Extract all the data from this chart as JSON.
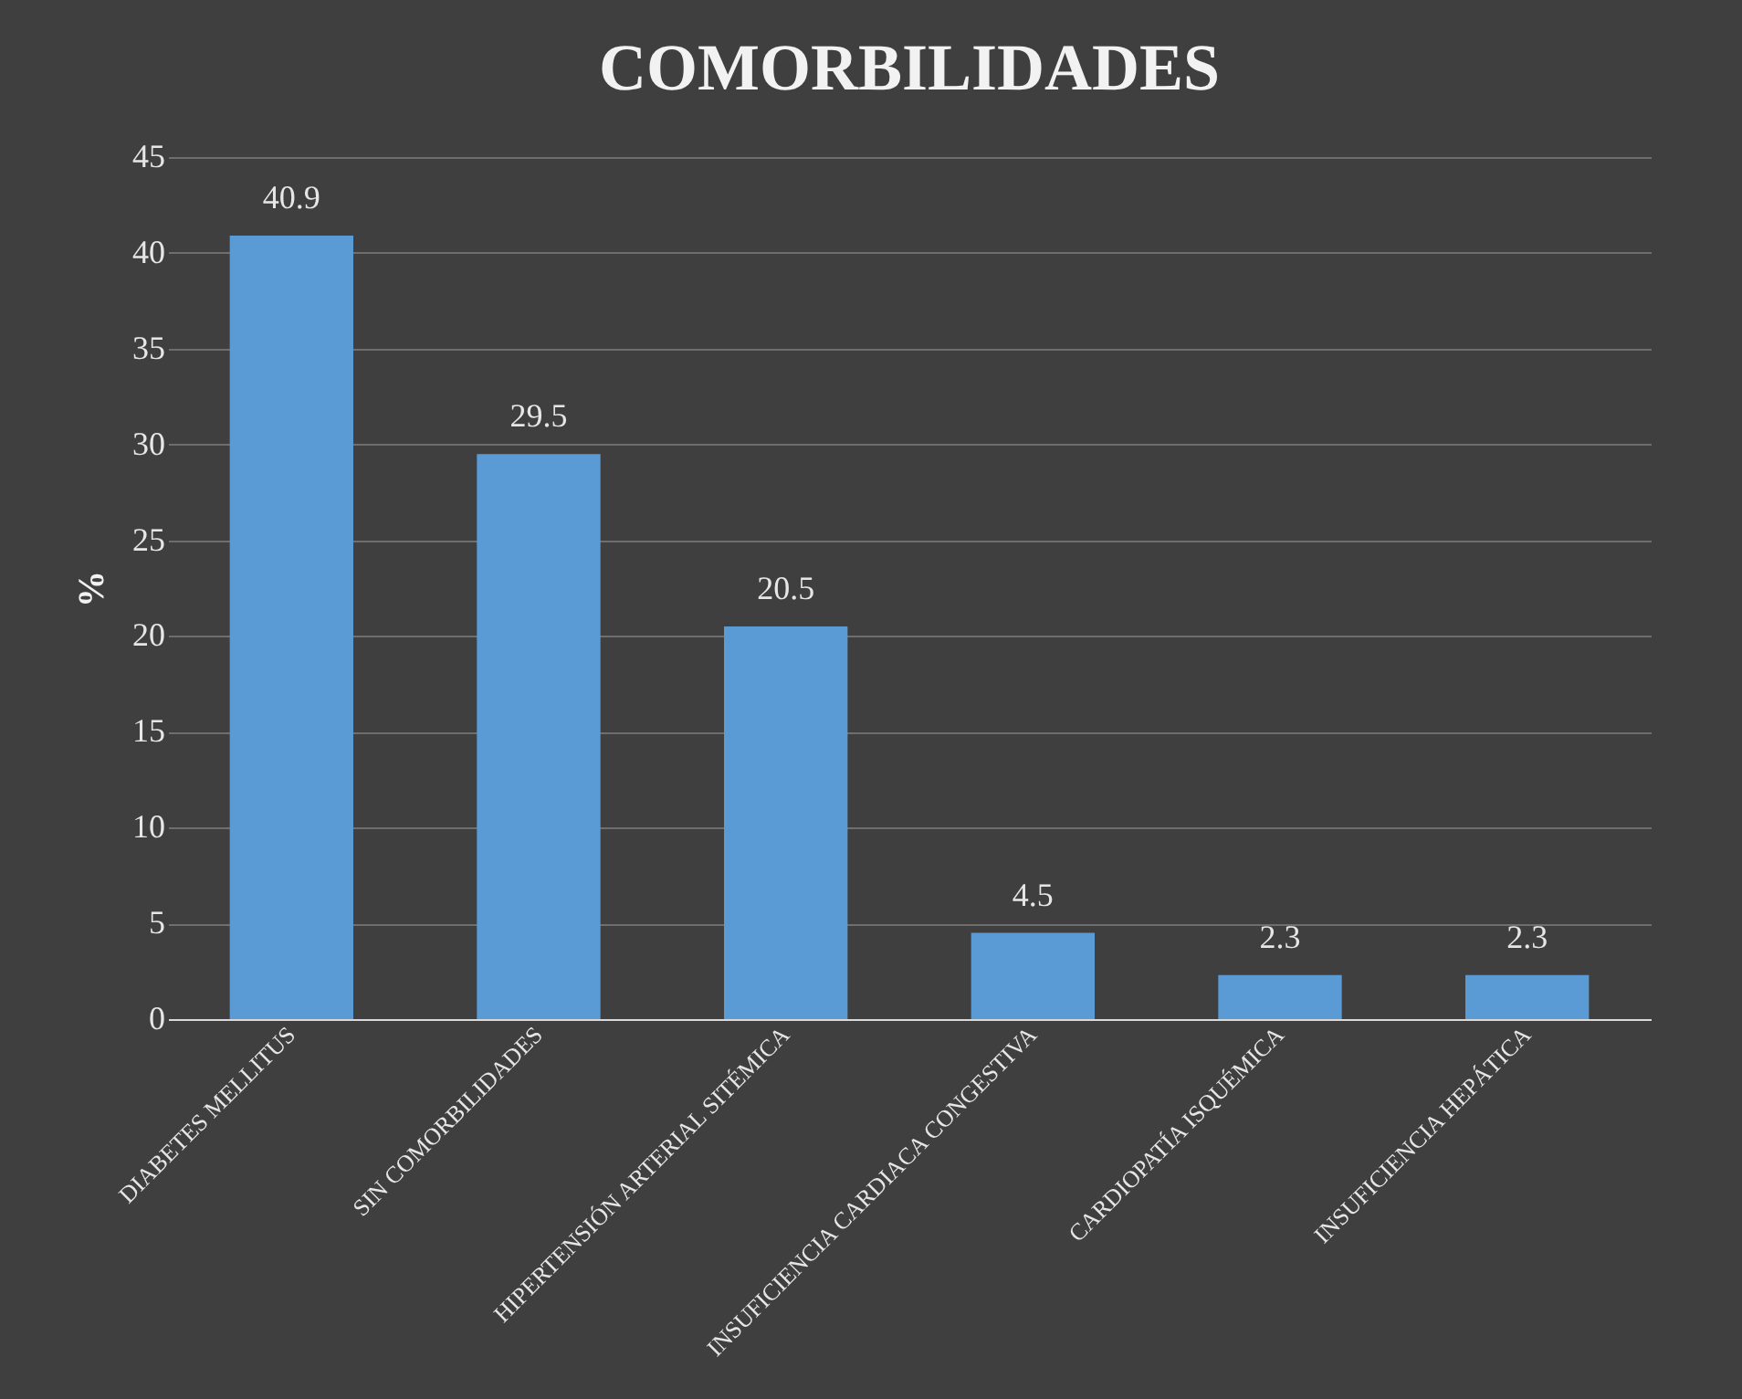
{
  "chart_data": {
    "type": "bar",
    "title": "COMORBILIDADES",
    "ylabel": "%",
    "categories": [
      "DIABETES MELLITUS",
      "SIN COMORBILIDADES",
      "HIPERTENSIÓN ARTERIAL SITÉMICA",
      "INSUFICIENCIA CARDIACA CONGESTIVA",
      "CARDIOPATÍA ISQUÉMICA",
      "INSUFICIENCIA HEPÁTICA"
    ],
    "values": [
      40.9,
      29.5,
      20.5,
      4.5,
      2.3,
      2.3
    ],
    "color": "#5b9bd5",
    "ylim": [
      0,
      45
    ],
    "yticks": [
      0,
      5,
      10,
      15,
      20,
      25,
      30,
      35,
      40,
      45
    ],
    "grid": "y",
    "data_labels": true
  }
}
